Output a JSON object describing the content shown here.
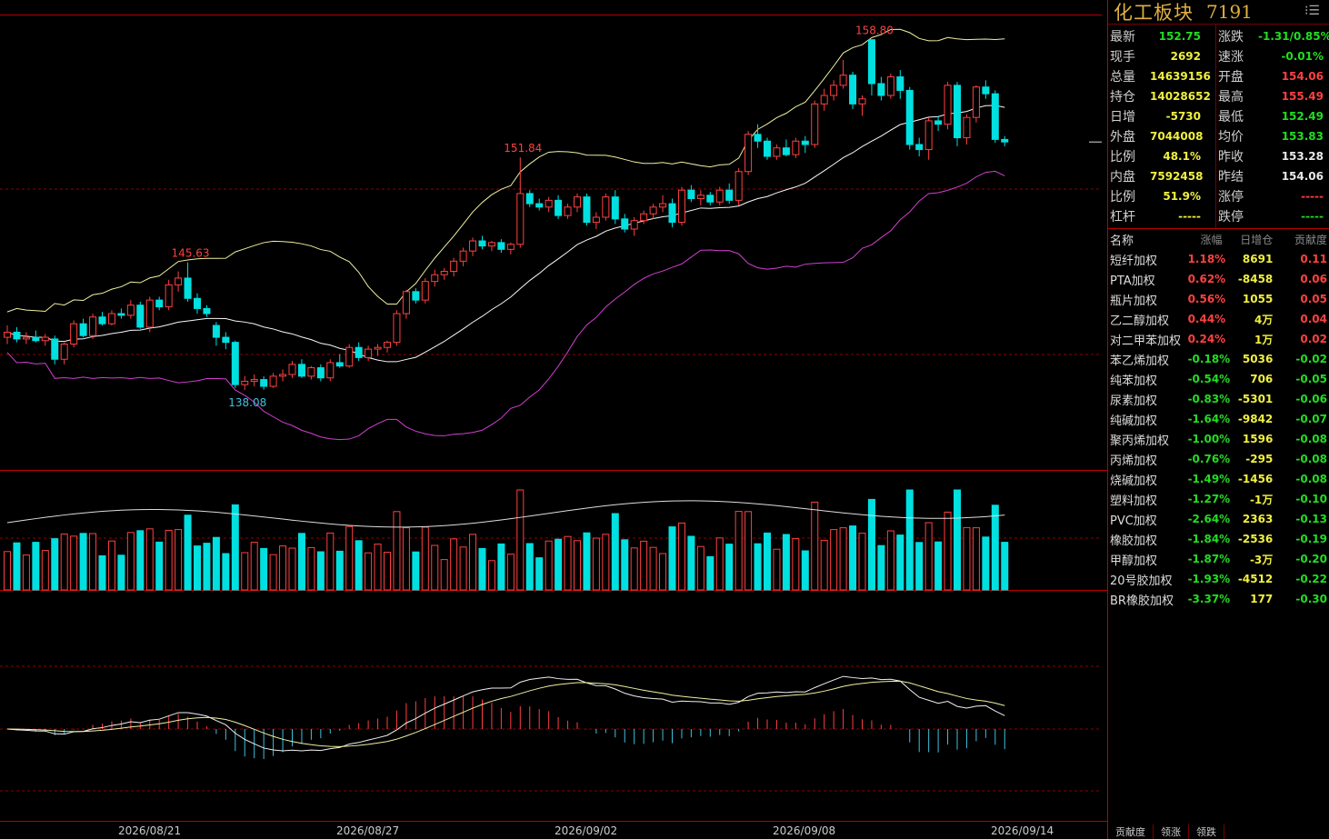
{
  "panel": {
    "name": "化工板块",
    "code": "7191",
    "quote_left": [
      {
        "label": "最新",
        "value": "152.75",
        "color": "green"
      },
      {
        "label": "现手",
        "value": "2692",
        "color": "yellow"
      },
      {
        "label": "总量",
        "value": "14639156",
        "color": "yellow"
      },
      {
        "label": "持仓",
        "value": "14028652",
        "color": "yellow"
      },
      {
        "label": "日增",
        "value": "-5730",
        "color": "yellow"
      },
      {
        "label": "外盘",
        "value": "7044008",
        "color": "yellow"
      },
      {
        "label": "比例",
        "value": "48.1%",
        "color": "yellow"
      },
      {
        "label": "内盘",
        "value": "7592458",
        "color": "yellow"
      },
      {
        "label": "比例",
        "value": "51.9%",
        "color": "yellow"
      },
      {
        "label": "杠杆",
        "value": "-----",
        "color": "yellow"
      }
    ],
    "quote_right": [
      {
        "label": "涨跌",
        "value": "-1.31/0.85%",
        "color": "green"
      },
      {
        "label": "速涨",
        "value": "-0.01%",
        "color": "green"
      },
      {
        "label": "开盘",
        "value": "154.06",
        "color": "red"
      },
      {
        "label": "最高",
        "value": "155.49",
        "color": "red"
      },
      {
        "label": "最低",
        "value": "152.49",
        "color": "green"
      },
      {
        "label": "均价",
        "value": "153.83",
        "color": "green"
      },
      {
        "label": "昨收",
        "value": "153.28",
        "color": "white"
      },
      {
        "label": "昨结",
        "value": "154.06",
        "color": "white"
      },
      {
        "label": "涨停",
        "value": "-----",
        "color": "red"
      },
      {
        "label": "跌停",
        "value": "-----",
        "color": "green"
      }
    ],
    "list_headers": {
      "name": "名称",
      "chg": "涨幅",
      "oi": "日增仓",
      "ctb": "贡献度"
    },
    "list": [
      {
        "name": "短纤加权",
        "chg": "1.18%",
        "oi": "8691",
        "ctb": "0.11",
        "dir": "red"
      },
      {
        "name": "PTA加权",
        "chg": "0.62%",
        "oi": "-8458",
        "ctb": "0.06",
        "dir": "red"
      },
      {
        "name": "瓶片加权",
        "chg": "0.56%",
        "oi": "1055",
        "ctb": "0.05",
        "dir": "red"
      },
      {
        "name": "乙二醇加权",
        "chg": "0.44%",
        "oi": "4万",
        "ctb": "0.04",
        "dir": "red"
      },
      {
        "name": "对二甲苯加权",
        "chg": "0.24%",
        "oi": "1万",
        "ctb": "0.02",
        "dir": "red"
      },
      {
        "name": "苯乙烯加权",
        "chg": "-0.18%",
        "oi": "5036",
        "ctb": "-0.02",
        "dir": "green"
      },
      {
        "name": "纯苯加权",
        "chg": "-0.54%",
        "oi": "706",
        "ctb": "-0.05",
        "dir": "green"
      },
      {
        "name": "尿素加权",
        "chg": "-0.83%",
        "oi": "-5301",
        "ctb": "-0.06",
        "dir": "green"
      },
      {
        "name": "纯碱加权",
        "chg": "-1.64%",
        "oi": "-9842",
        "ctb": "-0.07",
        "dir": "green"
      },
      {
        "name": "聚丙烯加权",
        "chg": "-1.00%",
        "oi": "1596",
        "ctb": "-0.08",
        "dir": "green"
      },
      {
        "name": "丙烯加权",
        "chg": "-0.76%",
        "oi": "-295",
        "ctb": "-0.08",
        "dir": "green"
      },
      {
        "name": "烧碱加权",
        "chg": "-1.49%",
        "oi": "-1456",
        "ctb": "-0.08",
        "dir": "green"
      },
      {
        "name": "塑料加权",
        "chg": "-1.27%",
        "oi": "-1万",
        "ctb": "-0.10",
        "dir": "green"
      },
      {
        "name": "PVC加权",
        "chg": "-2.64%",
        "oi": "2363",
        "ctb": "-0.13",
        "dir": "green"
      },
      {
        "name": "橡胶加权",
        "chg": "-1.84%",
        "oi": "-2536",
        "ctb": "-0.19",
        "dir": "green"
      },
      {
        "name": "甲醇加权",
        "chg": "-1.87%",
        "oi": "-3万",
        "ctb": "-0.20",
        "dir": "green"
      },
      {
        "name": "20号胶加权",
        "chg": "-1.93%",
        "oi": "-4512",
        "ctb": "-0.22",
        "dir": "green"
      },
      {
        "name": "BR橡胶加权",
        "chg": "-3.37%",
        "oi": "177",
        "ctb": "-0.30",
        "dir": "green"
      }
    ],
    "tabs": [
      "贡献度",
      "领涨",
      "领跌"
    ]
  },
  "colors": {
    "up": "#ff4040",
    "down": "#00e0e0",
    "ma": "#f0f0a0",
    "lower": "#d040d0",
    "grid": "#900000"
  },
  "chart_data": {
    "type": "candlestick",
    "annotations": {
      "high1": "145.63",
      "low1": "138.08",
      "high2": "151.84",
      "high3": "158.80"
    },
    "x_labels": [
      "2026/08/21",
      "2026/08/27",
      "2026/09/02",
      "2026/09/08",
      "2026/09/14"
    ],
    "ylim": [
      134.0,
      160.5
    ],
    "candles": [
      [
        141.2,
        141.9,
        140.8,
        141.5
      ],
      [
        141.5,
        141.8,
        140.9,
        141.1
      ],
      [
        141.1,
        141.5,
        140.8,
        141.2
      ],
      [
        141.2,
        141.6,
        140.9,
        141.0
      ],
      [
        141.0,
        141.4,
        140.7,
        141.2
      ],
      [
        141.1,
        141.3,
        139.6,
        139.9
      ],
      [
        139.9,
        140.9,
        139.6,
        140.8
      ],
      [
        140.8,
        142.2,
        140.6,
        142.0
      ],
      [
        142.0,
        142.3,
        141.2,
        141.3
      ],
      [
        141.3,
        142.6,
        141.1,
        142.4
      ],
      [
        142.4,
        142.7,
        141.9,
        142.0
      ],
      [
        142.0,
        142.8,
        141.9,
        142.6
      ],
      [
        142.6,
        142.9,
        142.3,
        142.5
      ],
      [
        142.5,
        143.4,
        142.3,
        143.1
      ],
      [
        143.1,
        143.3,
        141.7,
        141.8
      ],
      [
        141.8,
        143.6,
        141.5,
        143.4
      ],
      [
        143.4,
        143.6,
        142.8,
        143.0
      ],
      [
        143.0,
        144.6,
        142.8,
        144.3
      ],
      [
        144.3,
        145.1,
        143.9,
        144.7
      ],
      [
        144.7,
        145.63,
        143.3,
        143.5
      ],
      [
        143.5,
        143.8,
        142.6,
        142.9
      ],
      [
        142.9,
        143.1,
        142.4,
        142.6
      ],
      [
        141.9,
        142.1,
        140.7,
        141.2
      ],
      [
        141.2,
        141.5,
        140.5,
        140.9
      ],
      [
        140.9,
        141.0,
        138.2,
        138.4
      ],
      [
        138.4,
        138.9,
        138.08,
        138.6
      ],
      [
        138.6,
        139.0,
        138.3,
        138.7
      ],
      [
        138.7,
        138.9,
        138.1,
        138.3
      ],
      [
        138.3,
        139.1,
        138.2,
        138.9
      ],
      [
        138.9,
        139.3,
        138.6,
        139.0
      ],
      [
        139.0,
        139.8,
        138.8,
        139.6
      ],
      [
        139.6,
        139.9,
        138.8,
        138.9
      ],
      [
        138.9,
        139.5,
        138.7,
        139.4
      ],
      [
        139.4,
        139.6,
        138.6,
        138.8
      ],
      [
        138.8,
        139.9,
        138.6,
        139.7
      ],
      [
        139.7,
        140.2,
        139.4,
        139.5
      ],
      [
        139.5,
        140.8,
        139.4,
        140.6
      ],
      [
        140.6,
        140.9,
        139.8,
        140.0
      ],
      [
        140.0,
        140.7,
        139.8,
        140.5
      ],
      [
        140.5,
        140.8,
        140.1,
        140.6
      ],
      [
        140.6,
        141.0,
        140.3,
        140.9
      ],
      [
        140.9,
        142.8,
        140.7,
        142.6
      ],
      [
        142.6,
        144.0,
        142.3,
        143.9
      ],
      [
        143.9,
        144.1,
        143.2,
        143.4
      ],
      [
        143.4,
        144.7,
        143.2,
        144.5
      ],
      [
        144.5,
        145.2,
        144.2,
        144.9
      ],
      [
        144.9,
        145.3,
        144.6,
        145.1
      ],
      [
        145.1,
        145.9,
        144.8,
        145.7
      ],
      [
        145.7,
        146.5,
        145.4,
        146.3
      ],
      [
        146.3,
        147.1,
        146.0,
        146.9
      ],
      [
        146.9,
        147.2,
        146.4,
        146.6
      ],
      [
        146.6,
        146.9,
        146.3,
        146.8
      ],
      [
        146.8,
        147.0,
        146.2,
        146.4
      ],
      [
        146.4,
        146.8,
        146.1,
        146.7
      ],
      [
        146.7,
        151.84,
        146.5,
        149.7
      ],
      [
        149.7,
        149.9,
        148.9,
        149.1
      ],
      [
        149.1,
        149.4,
        148.7,
        148.9
      ],
      [
        148.9,
        149.5,
        148.6,
        149.3
      ],
      [
        149.3,
        149.6,
        148.2,
        148.4
      ],
      [
        148.4,
        149.1,
        148.2,
        148.9
      ],
      [
        148.9,
        149.7,
        148.6,
        149.5
      ],
      [
        149.5,
        149.7,
        147.8,
        148.0
      ],
      [
        148.0,
        148.6,
        147.6,
        148.3
      ],
      [
        148.3,
        149.7,
        148.1,
        149.5
      ],
      [
        149.5,
        149.9,
        147.9,
        148.2
      ],
      [
        148.2,
        148.5,
        147.4,
        147.6
      ],
      [
        147.6,
        148.3,
        147.2,
        148.1
      ],
      [
        148.1,
        148.7,
        147.9,
        148.5
      ],
      [
        148.5,
        149.1,
        148.2,
        148.9
      ],
      [
        148.9,
        149.6,
        148.6,
        149.1
      ],
      [
        149.1,
        149.4,
        147.7,
        148.0
      ],
      [
        148.0,
        150.1,
        147.8,
        149.9
      ],
      [
        149.9,
        150.2,
        149.2,
        149.4
      ],
      [
        149.4,
        149.9,
        149.0,
        149.6
      ],
      [
        149.6,
        149.8,
        149.0,
        149.2
      ],
      [
        149.2,
        150.1,
        149.0,
        149.9
      ],
      [
        149.9,
        150.3,
        149.1,
        149.3
      ],
      [
        149.3,
        151.2,
        149.0,
        151.0
      ],
      [
        151.0,
        153.4,
        150.8,
        153.2
      ],
      [
        153.2,
        153.8,
        152.4,
        152.8
      ],
      [
        152.8,
        153.0,
        151.7,
        151.9
      ],
      [
        151.9,
        152.6,
        151.7,
        152.4
      ],
      [
        152.4,
        152.9,
        151.9,
        152.0
      ],
      [
        152.0,
        153.0,
        151.8,
        152.8
      ],
      [
        152.8,
        153.1,
        152.1,
        152.6
      ],
      [
        152.6,
        155.2,
        152.4,
        155.0
      ],
      [
        155.0,
        155.9,
        154.6,
        155.5
      ],
      [
        155.5,
        156.4,
        155.2,
        156.1
      ],
      [
        156.1,
        157.6,
        155.9,
        156.7
      ],
      [
        156.7,
        156.9,
        154.7,
        155.0
      ],
      [
        155.0,
        155.5,
        154.3,
        155.3
      ],
      [
        158.8,
        158.8,
        155.5,
        156.2
      ],
      [
        156.2,
        156.6,
        155.2,
        155.5
      ],
      [
        155.5,
        156.8,
        155.3,
        156.6
      ],
      [
        156.6,
        157.0,
        155.3,
        155.8
      ],
      [
        155.8,
        156.0,
        152.3,
        152.6
      ],
      [
        152.6,
        153.0,
        151.9,
        152.3
      ],
      [
        152.3,
        154.2,
        151.7,
        154.0
      ],
      [
        154.0,
        154.3,
        153.4,
        153.8
      ],
      [
        153.8,
        156.3,
        153.5,
        156.1
      ],
      [
        156.1,
        156.3,
        152.5,
        153.0
      ],
      [
        153.0,
        154.4,
        152.6,
        154.2
      ],
      [
        154.2,
        156.1,
        153.9,
        156.0
      ],
      [
        156.0,
        156.4,
        155.3,
        155.6
      ],
      [
        155.6,
        155.8,
        152.7,
        152.9
      ],
      [
        152.9,
        153.1,
        152.49,
        152.75
      ]
    ]
  }
}
